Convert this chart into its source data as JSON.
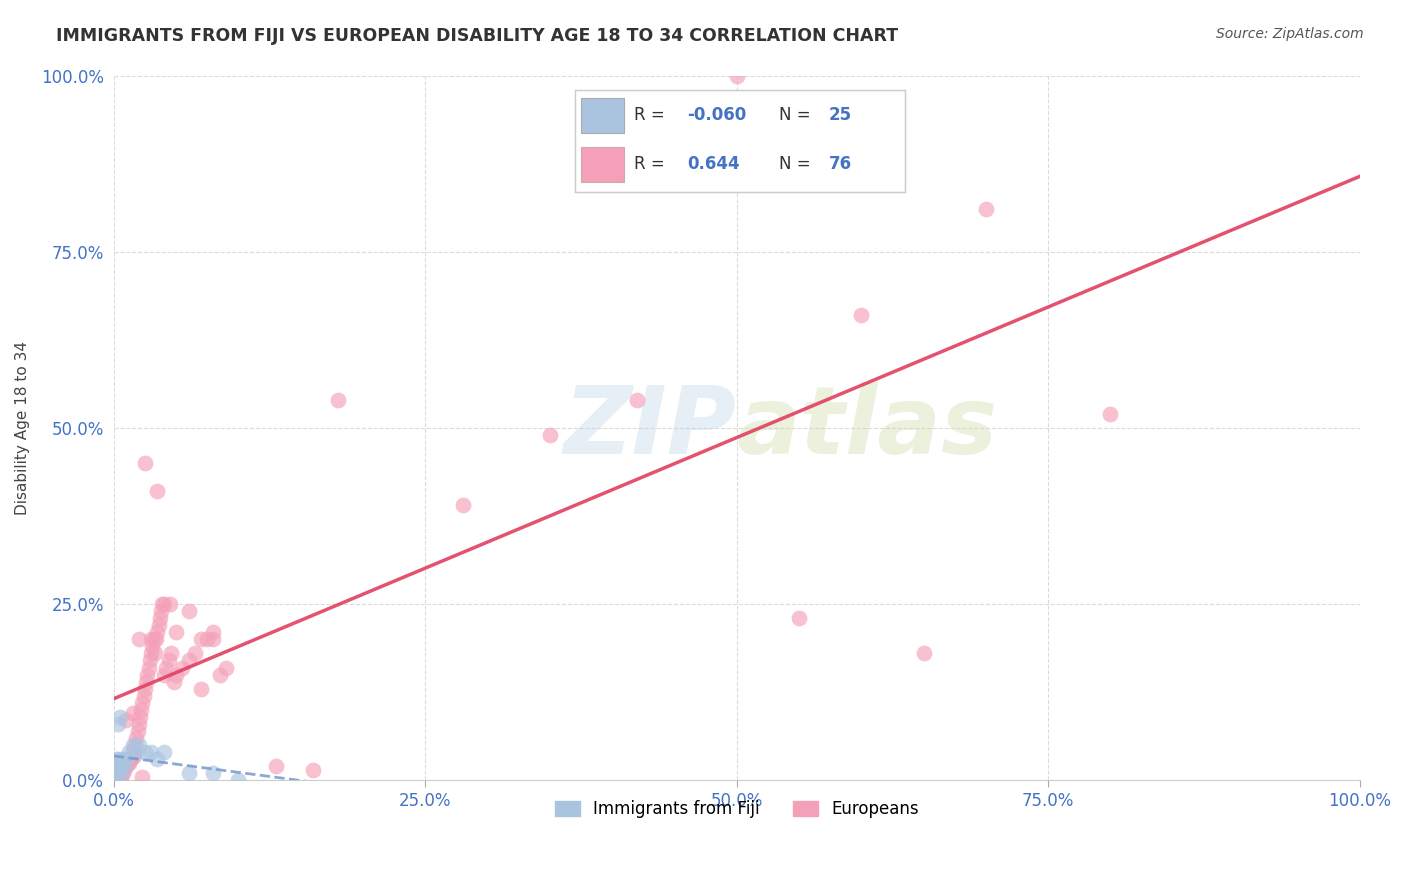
{
  "title": "IMMIGRANTS FROM FIJI VS EUROPEAN DISABILITY AGE 18 TO 34 CORRELATION CHART",
  "source": "Source: ZipAtlas.com",
  "blue_color": "#4472c4",
  "ylabel": "Disability Age 18 to 34",
  "watermark_zip": "ZIP",
  "watermark_atlas": "atlas",
  "fiji_R": -0.06,
  "fiji_N": 25,
  "euro_R": 0.644,
  "euro_N": 76,
  "fiji_color": "#aac4e0",
  "euro_color": "#f4a0b8",
  "fiji_line_color": "#7799cc",
  "euro_line_color": "#e04060",
  "fiji_scatter_x": [
    0.0,
    0.001,
    0.001,
    0.002,
    0.002,
    0.003,
    0.004,
    0.005,
    0.006,
    0.007,
    0.008,
    0.01,
    0.012,
    0.015,
    0.018,
    0.02,
    0.025,
    0.03,
    0.035,
    0.04,
    0.06,
    0.08,
    0.1,
    0.005,
    0.003
  ],
  "fiji_scatter_y": [
    0.0,
    0.01,
    0.02,
    0.01,
    0.03,
    0.02,
    0.03,
    0.02,
    0.01,
    0.03,
    0.02,
    0.03,
    0.04,
    0.05,
    0.04,
    0.05,
    0.04,
    0.04,
    0.03,
    0.04,
    0.01,
    0.01,
    0.0,
    0.09,
    0.08
  ],
  "euro_scatter_x": [
    0.005,
    0.008,
    0.01,
    0.012,
    0.013,
    0.015,
    0.016,
    0.017,
    0.018,
    0.019,
    0.02,
    0.021,
    0.022,
    0.023,
    0.024,
    0.025,
    0.026,
    0.027,
    0.028,
    0.029,
    0.03,
    0.031,
    0.032,
    0.033,
    0.034,
    0.035,
    0.036,
    0.037,
    0.038,
    0.039,
    0.04,
    0.042,
    0.044,
    0.046,
    0.048,
    0.05,
    0.055,
    0.06,
    0.065,
    0.07,
    0.075,
    0.08,
    0.085,
    0.09,
    0.01,
    0.015,
    0.02,
    0.025,
    0.03,
    0.035,
    0.04,
    0.045,
    0.05,
    0.06,
    0.07,
    0.08,
    0.5,
    0.6,
    0.7,
    0.8,
    0.35,
    0.42,
    0.28,
    0.18,
    0.55,
    0.65,
    0.003,
    0.004,
    0.006,
    0.007,
    0.009,
    0.011,
    0.014,
    0.023,
    0.13,
    0.16
  ],
  "euro_scatter_y": [
    0.01,
    0.015,
    0.02,
    0.025,
    0.03,
    0.04,
    0.035,
    0.05,
    0.06,
    0.07,
    0.08,
    0.09,
    0.1,
    0.11,
    0.12,
    0.13,
    0.14,
    0.15,
    0.16,
    0.17,
    0.18,
    0.19,
    0.2,
    0.18,
    0.2,
    0.21,
    0.22,
    0.23,
    0.24,
    0.25,
    0.15,
    0.16,
    0.17,
    0.18,
    0.14,
    0.15,
    0.16,
    0.17,
    0.18,
    0.13,
    0.2,
    0.21,
    0.15,
    0.16,
    0.085,
    0.095,
    0.2,
    0.45,
    0.2,
    0.41,
    0.25,
    0.25,
    0.21,
    0.24,
    0.2,
    0.2,
    1.0,
    0.66,
    0.81,
    0.52,
    0.49,
    0.54,
    0.39,
    0.54,
    0.23,
    0.18,
    0.01,
    0.015,
    0.005,
    0.01,
    0.02,
    0.025,
    0.03,
    0.005,
    0.02,
    0.015
  ],
  "xlim": [
    0.0,
    1.0
  ],
  "ylim": [
    0.0,
    1.0
  ],
  "xticks": [
    0.0,
    0.25,
    0.5,
    0.75,
    1.0
  ],
  "yticks": [
    0.0,
    0.25,
    0.5,
    0.75,
    1.0
  ],
  "xtick_labels": [
    "0.0%",
    "25.0%",
    "50.0%",
    "75.0%",
    "100.0%"
  ],
  "ytick_labels": [
    "0.0%",
    "25.0%",
    "50.0%",
    "75.0%",
    "100.0%"
  ],
  "grid_color": "#cccccc",
  "background_color": "#ffffff"
}
